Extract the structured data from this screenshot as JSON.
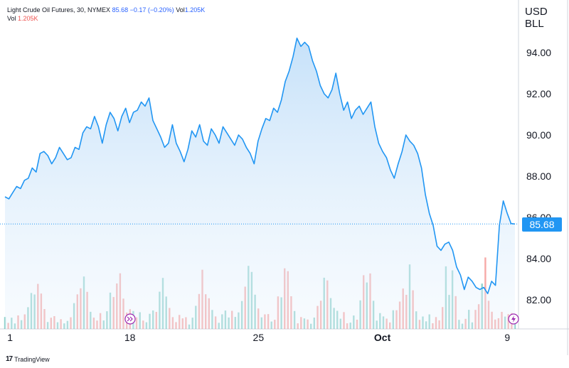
{
  "legend": {
    "symbol": "Light Crude Oil Futures, 30, NYMEX",
    "last": "85.68",
    "change": "−0.17 (−0.20%)",
    "vol_label": "Vol",
    "vol_value": "1.205K",
    "vol2_label": "Vol",
    "vol2_value": "1.205K"
  },
  "unit": {
    "line1": "USD",
    "line2": "BLL"
  },
  "last_price_tag": "85.68",
  "brand": {
    "logo": "17",
    "name": "TradingView"
  },
  "colors": {
    "line": "#2196f3",
    "area_top": "#cfe6fb",
    "vol_up": "#26a69a",
    "vol_down": "#ef5350",
    "accent": "#2962ff"
  },
  "icons": [
    "fast-forward-icon",
    "lightning-icon"
  ],
  "chart_data": {
    "type": "area",
    "title": "Light Crude Oil Futures, 30, NYMEX",
    "xlabel": "",
    "ylabel": "USD BLL",
    "ylim": [
      80.8,
      96.0
    ],
    "x_ticks": [
      "1",
      "18",
      "25",
      "Oct",
      "9"
    ],
    "y_ticks": [
      "82.00",
      "84.00",
      "86.00",
      "88.00",
      "90.00",
      "92.00",
      "94.00"
    ],
    "grid": false,
    "last_value": 85.68,
    "series": [
      {
        "values": [
          87.0,
          86.9,
          87.2,
          87.5,
          87.4,
          87.8,
          87.9,
          88.4,
          88.2,
          89.1,
          89.2,
          89.0,
          88.6,
          88.9,
          89.4,
          89.1,
          88.8,
          88.9,
          89.4,
          89.3,
          90.1,
          90.4,
          90.3,
          90.9,
          90.4,
          89.6,
          90.5,
          91.1,
          90.8,
          90.2,
          90.9,
          91.3,
          90.6,
          91.1,
          91.2,
          91.6,
          91.4,
          91.8,
          90.7,
          90.3,
          89.9,
          89.4,
          89.6,
          90.5,
          89.6,
          89.2,
          88.7,
          89.3,
          90.2,
          89.9,
          90.5,
          89.7,
          89.5,
          90.3,
          90.0,
          89.6,
          90.4,
          90.1,
          89.8,
          89.5,
          90.0,
          89.8,
          89.4,
          89.1,
          88.6,
          89.7,
          90.3,
          90.8,
          90.7,
          91.3,
          91.1,
          91.7,
          92.6,
          93.1,
          93.8,
          94.7,
          94.3,
          94.5,
          94.3,
          93.6,
          93.1,
          92.4,
          92.0,
          91.8,
          92.2,
          93.0,
          92.0,
          91.2,
          91.6,
          90.8,
          91.2,
          91.4,
          91.0,
          91.3,
          91.6,
          90.4,
          89.6,
          89.2,
          88.9,
          88.3,
          87.9,
          88.6,
          89.2,
          90.0,
          89.7,
          89.5,
          89.1,
          88.4,
          87.1,
          86.2,
          85.6,
          84.6,
          84.4,
          84.7,
          84.8,
          84.4,
          83.6,
          83.2,
          82.5,
          83.1,
          82.9,
          82.6,
          82.5,
          82.6,
          82.3,
          82.9,
          82.7,
          85.6,
          86.8,
          86.2,
          85.7,
          85.68
        ]
      }
    ],
    "volume": {
      "series_name": "Vol",
      "bars_shown": 156
    }
  }
}
